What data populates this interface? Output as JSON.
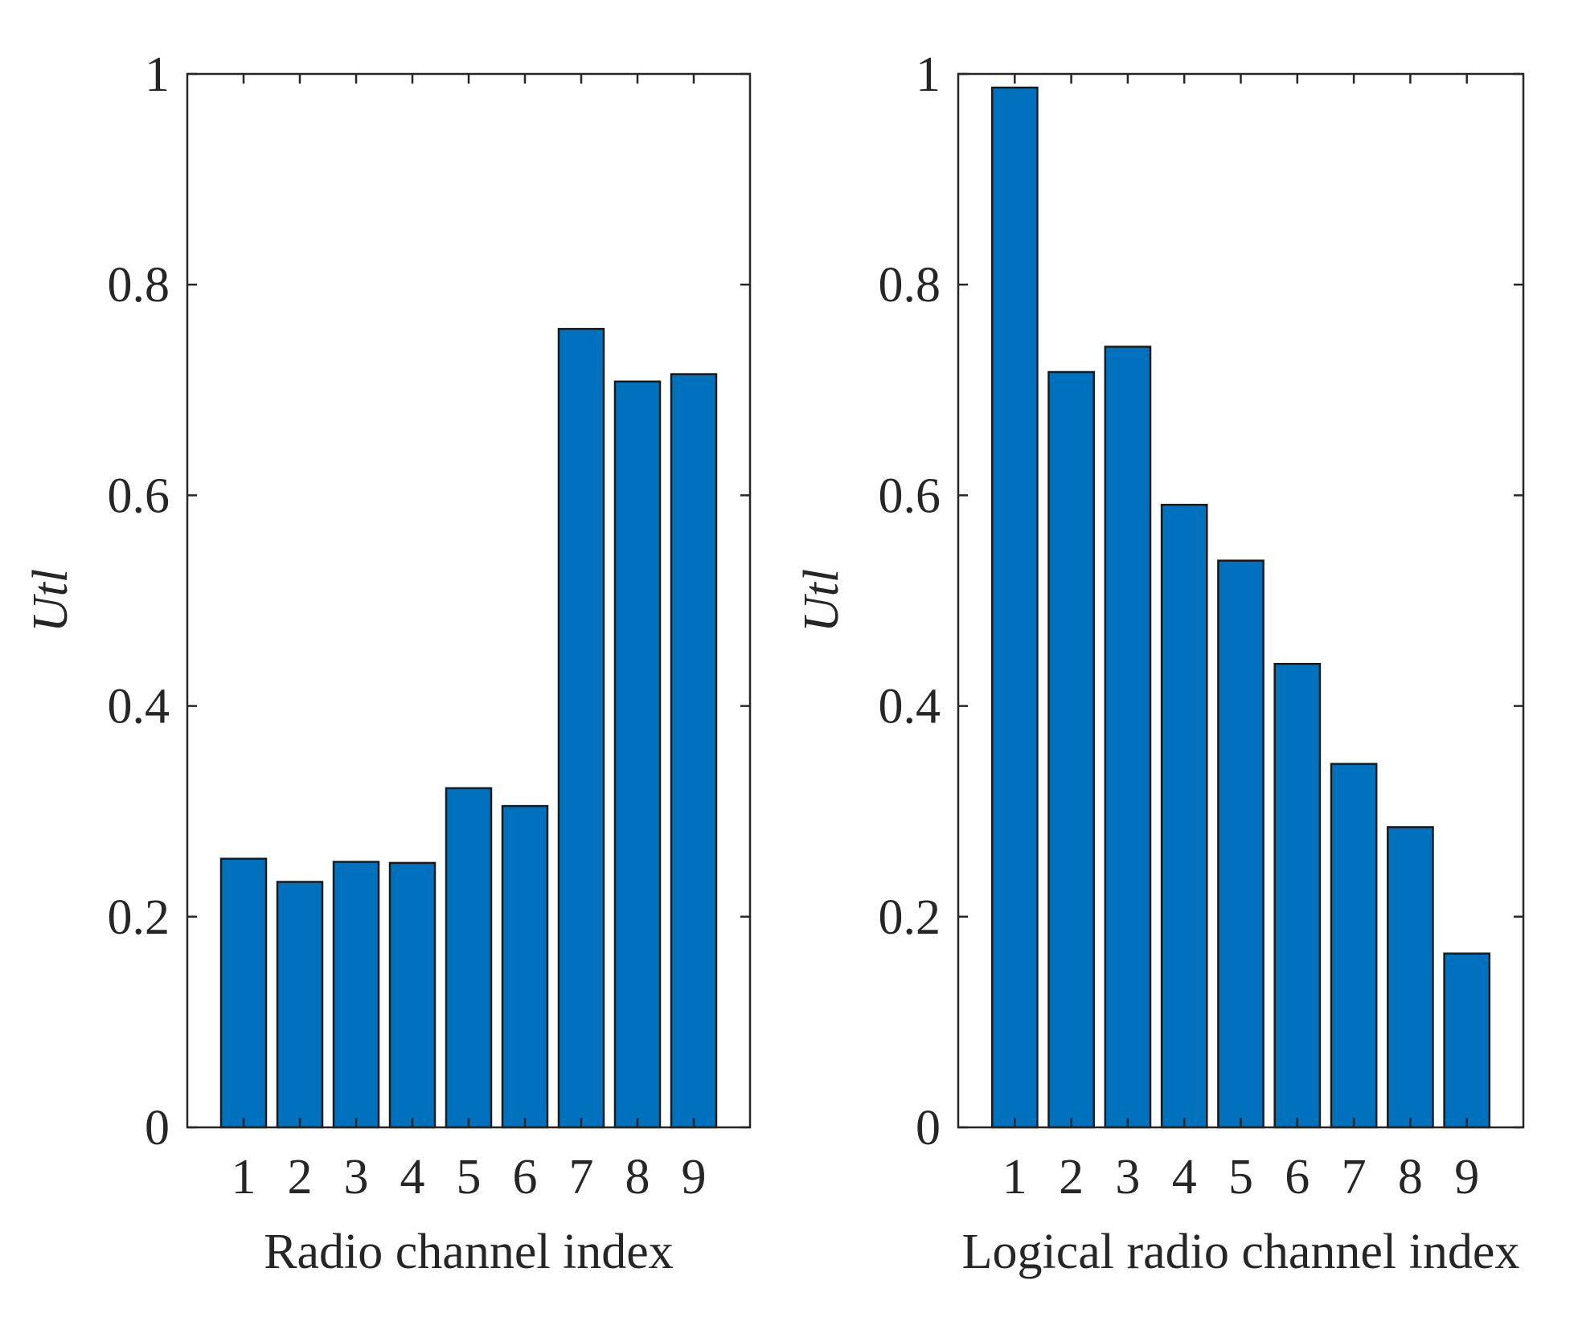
{
  "chart_data": [
    {
      "type": "bar",
      "title": "",
      "xlabel": "Radio channel index",
      "ylabel": "Utl",
      "categories": [
        "1",
        "2",
        "3",
        "4",
        "5",
        "6",
        "7",
        "8",
        "9"
      ],
      "values": [
        0.255,
        0.233,
        0.252,
        0.251,
        0.322,
        0.305,
        0.758,
        0.708,
        0.715
      ],
      "ylim": [
        0,
        1
      ],
      "yticks": [
        0,
        0.2,
        0.4,
        0.6,
        0.8,
        1
      ],
      "ytick_labels": [
        "0",
        "0.2",
        "0.4",
        "0.6",
        "0.8",
        "1"
      ],
      "bar_color": "#0072BD",
      "grid": false
    },
    {
      "type": "bar",
      "title": "",
      "xlabel": "Logical radio channel index",
      "ylabel": "Utl",
      "categories": [
        "1",
        "2",
        "3",
        "4",
        "5",
        "6",
        "7",
        "8",
        "9"
      ],
      "values": [
        0.987,
        0.717,
        0.741,
        0.591,
        0.538,
        0.44,
        0.345,
        0.285,
        0.165
      ],
      "ylim": [
        0,
        1
      ],
      "yticks": [
        0,
        0.2,
        0.4,
        0.6,
        0.8,
        1
      ],
      "ytick_labels": [
        "0",
        "0.2",
        "0.4",
        "0.6",
        "0.8",
        "1"
      ],
      "bar_color": "#0072BD",
      "grid": false
    }
  ]
}
